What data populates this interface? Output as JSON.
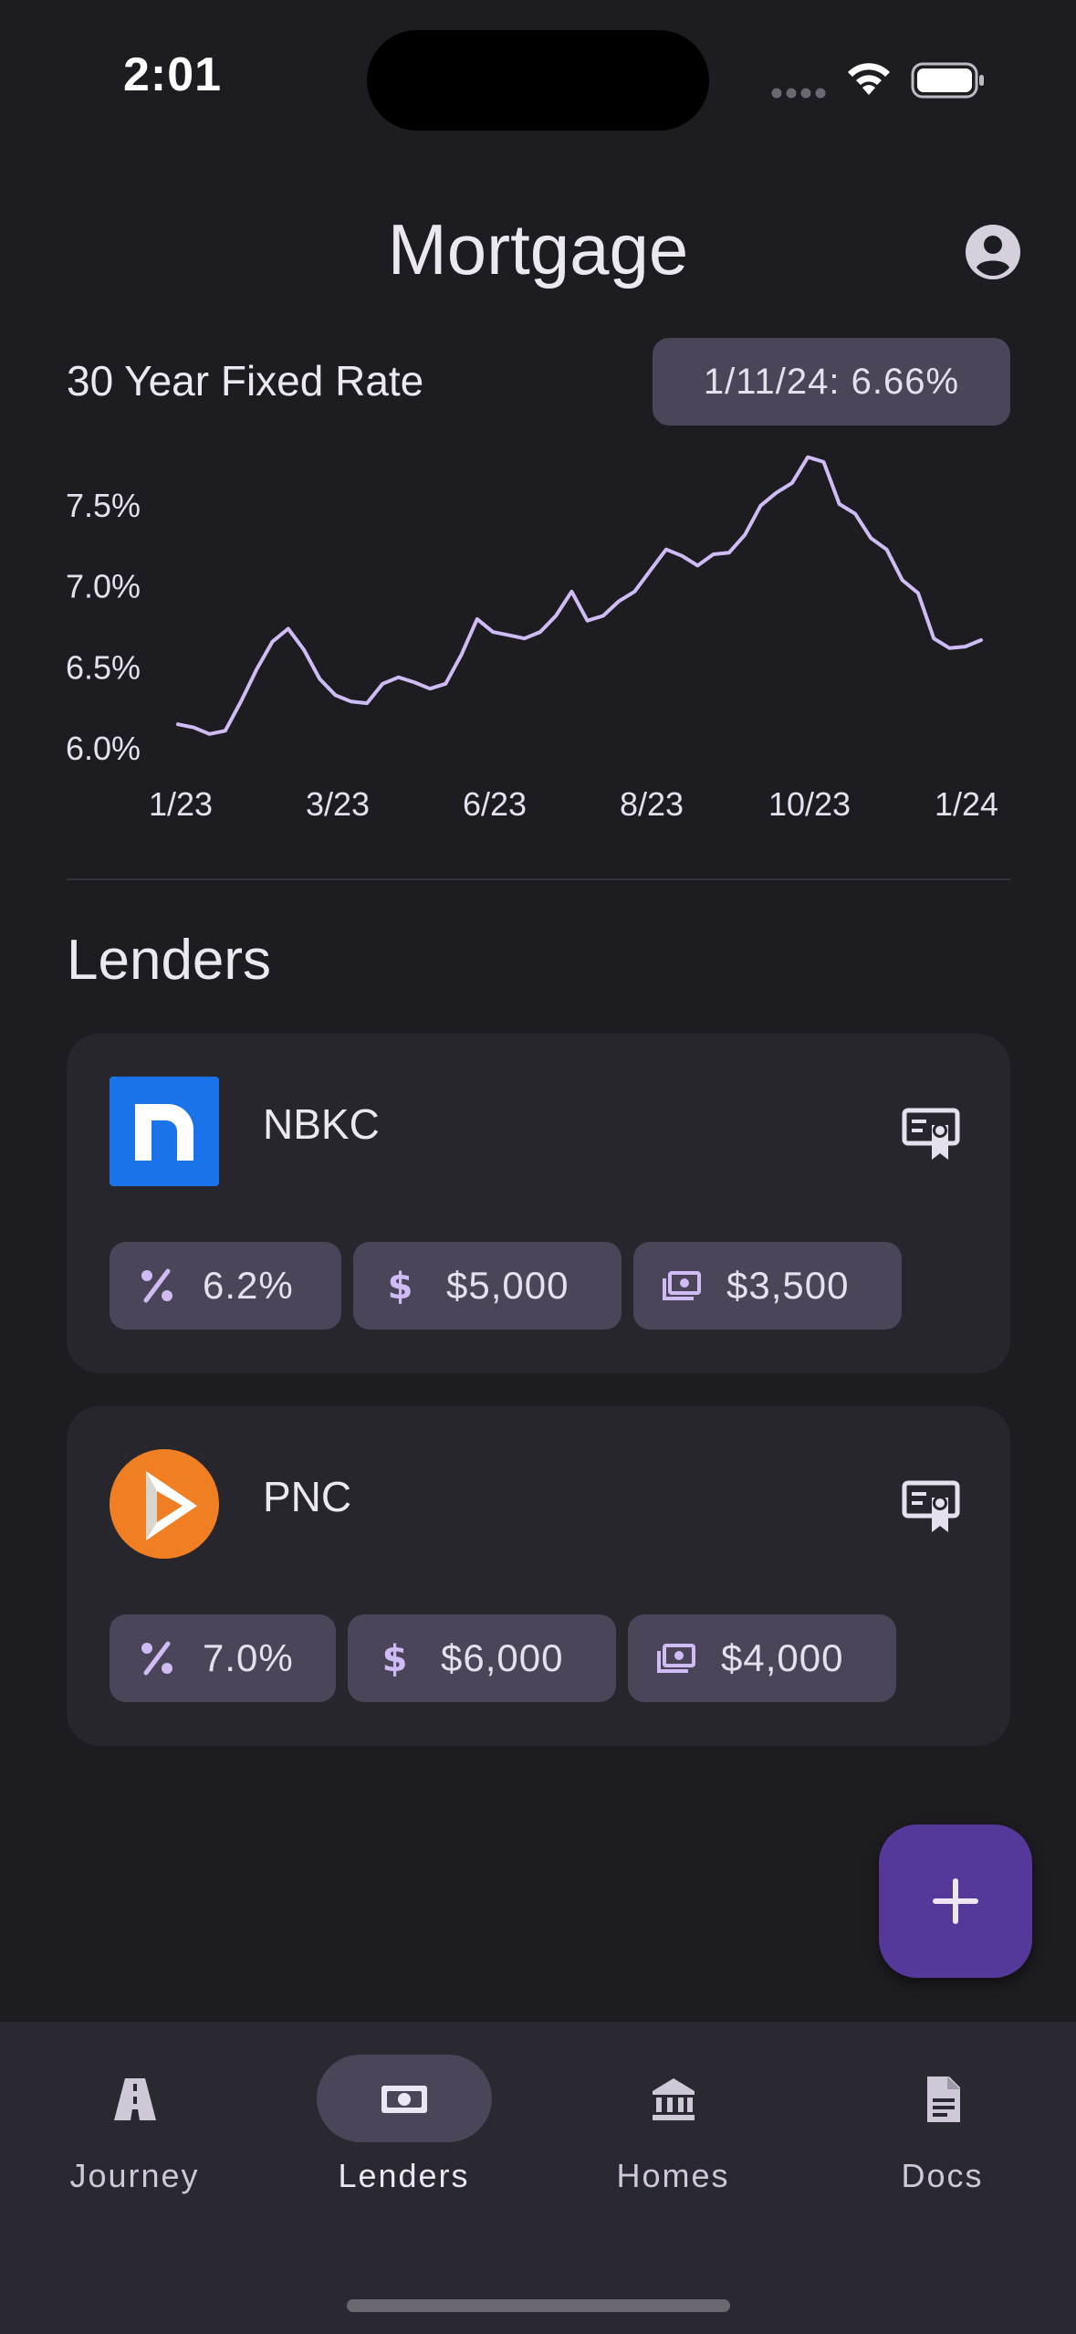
{
  "status_bar": {
    "time": "2:01"
  },
  "header": {
    "title": "Mortgage",
    "account_icon": "account-circle-icon"
  },
  "rate": {
    "label": "30 Year Fixed Rate",
    "chip": "1/11/24: 6.66%"
  },
  "chart_data": {
    "type": "line",
    "title": "30 Year Fixed Rate",
    "x_tick_labels": [
      "1/23",
      "3/23",
      "6/23",
      "8/23",
      "10/23",
      "1/24"
    ],
    "y_tick_labels": [
      "7.5%",
      "7.0%",
      "6.5%",
      "6.0%"
    ],
    "ylim": [
      6.0,
      7.5
    ],
    "line_color": "#cfbcf5",
    "grid": false,
    "series": [
      {
        "values": [
          6.14,
          6.12,
          6.08,
          6.1,
          6.28,
          6.48,
          6.65,
          6.73,
          6.6,
          6.42,
          6.32,
          6.28,
          6.27,
          6.39,
          6.43,
          6.4,
          6.36,
          6.39,
          6.57,
          6.79,
          6.71,
          6.69,
          6.67,
          6.71,
          6.81,
          6.96,
          6.78,
          6.81,
          6.9,
          6.96,
          7.09,
          7.22,
          7.18,
          7.12,
          7.19,
          7.2,
          7.31,
          7.49,
          7.57,
          7.63,
          7.79,
          7.76,
          7.5,
          7.44,
          7.29,
          7.22,
          7.03,
          6.95,
          6.67,
          6.61,
          6.62,
          6.66
        ]
      }
    ]
  },
  "lenders_heading": "Lenders",
  "lenders": [
    {
      "name": "NBKC",
      "logo": "nbkc-logo",
      "rate": "6.2%",
      "closing_cost": "$5,000",
      "credit": "$3,500"
    },
    {
      "name": "PNC",
      "logo": "pnc-logo",
      "rate": "7.0%",
      "closing_cost": "$6,000",
      "credit": "$4,000"
    }
  ],
  "fab": {
    "icon": "plus-icon"
  },
  "nav": {
    "active": "Lenders",
    "items": [
      {
        "label": "Journey",
        "icon": "road-icon"
      },
      {
        "label": "Lenders",
        "icon": "money-icon"
      },
      {
        "label": "Homes",
        "icon": "bank-icon"
      },
      {
        "label": "Docs",
        "icon": "document-icon"
      }
    ]
  }
}
